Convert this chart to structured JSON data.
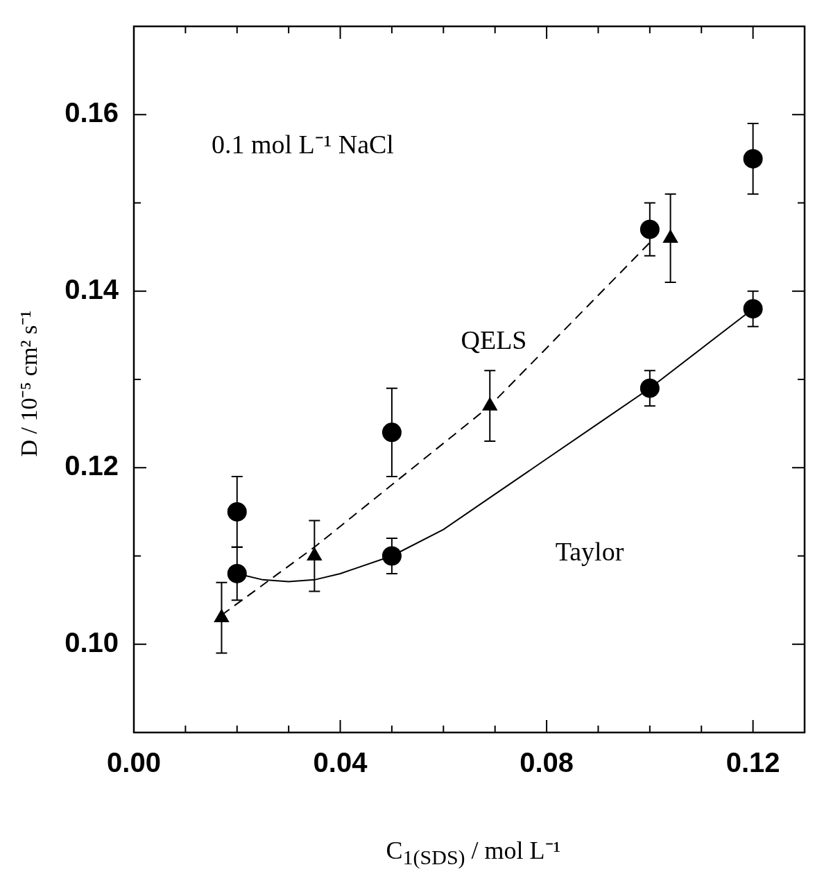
{
  "chart_data": {
    "type": "scatter",
    "xlabel": "C$_{1(SDS)}$ / mol L⁻¹",
    "ylabel": "D / 10⁻⁵ cm² s⁻¹",
    "annotations": [
      "0.1 mol L⁻¹ NaCl",
      "QELS",
      "Taylor"
    ],
    "xlim": [
      0,
      0.13
    ],
    "ylim": [
      0.09,
      0.17
    ],
    "xticks": [
      {
        "value": 0,
        "label": "0.00"
      },
      {
        "value": 0.01,
        "label": null
      },
      {
        "value": 0.02,
        "label": null
      },
      {
        "value": 0.03,
        "label": null
      },
      {
        "value": 0.04,
        "label": "0.04"
      },
      {
        "value": 0.05,
        "label": null
      },
      {
        "value": 0.06,
        "label": null
      },
      {
        "value": 0.07,
        "label": null
      },
      {
        "value": 0.08,
        "label": "0.08"
      },
      {
        "value": 0.09,
        "label": null
      },
      {
        "value": 0.1,
        "label": null
      },
      {
        "value": 0.11,
        "label": null
      },
      {
        "value": 0.12,
        "label": "0.12"
      },
      {
        "value": 0.13,
        "label": null
      }
    ],
    "yticks": [
      {
        "value": 0.09,
        "label": null
      },
      {
        "value": 0.1,
        "label": "0.10"
      },
      {
        "value": 0.11,
        "label": null
      },
      {
        "value": 0.12,
        "label": "0.12"
      },
      {
        "value": 0.13,
        "label": null
      },
      {
        "value": 0.14,
        "label": "0.14"
      },
      {
        "value": 0.15,
        "label": null
      },
      {
        "value": 0.16,
        "label": "0.16"
      },
      {
        "value": 0.17,
        "label": null
      }
    ],
    "grid": false,
    "series": [
      {
        "type": "scatter",
        "marker": "circle",
        "color": "#000000",
        "x": [
          0.02,
          0.05,
          0.1,
          0.12
        ],
        "values": [
          0.108,
          0.11,
          0.129,
          0.138
        ],
        "errors": [
          0.003,
          0.002,
          0.002,
          0.002
        ]
      },
      {
        "type": "scatter",
        "marker": "circle",
        "color": "#000000",
        "x": [
          0.02,
          0.05,
          0.1,
          0.12
        ],
        "values": [
          0.115,
          0.124,
          0.147,
          0.155
        ],
        "errors": [
          0.004,
          0.005,
          0.003,
          0.004
        ]
      },
      {
        "type": "scatter",
        "marker": "triangle",
        "color": "#000000",
        "x": [
          0.017,
          0.035,
          0.069,
          0.104
        ],
        "values": [
          0.103,
          0.11,
          0.127,
          0.146
        ],
        "errors": [
          0.004,
          0.004,
          0.004,
          0.005
        ]
      },
      {
        "type": "line",
        "marker": "none",
        "line_style": "solid",
        "color": "#000000",
        "x": [
          0.02,
          0.025,
          0.03,
          0.035,
          0.04,
          0.05,
          0.06,
          0.07,
          0.08,
          0.09,
          0.1,
          0.11,
          0.12
        ],
        "values": [
          0.108,
          0.1073,
          0.1071,
          0.1073,
          0.108,
          0.11,
          0.113,
          0.117,
          0.121,
          0.125,
          0.129,
          0.1335,
          0.138
        ]
      },
      {
        "type": "line",
        "marker": "none",
        "line_style": "dashed",
        "color": "#000000",
        "x": [
          0.017,
          0.035,
          0.069,
          0.1
        ],
        "values": [
          0.1033,
          0.111,
          0.127,
          0.1455
        ]
      }
    ]
  }
}
